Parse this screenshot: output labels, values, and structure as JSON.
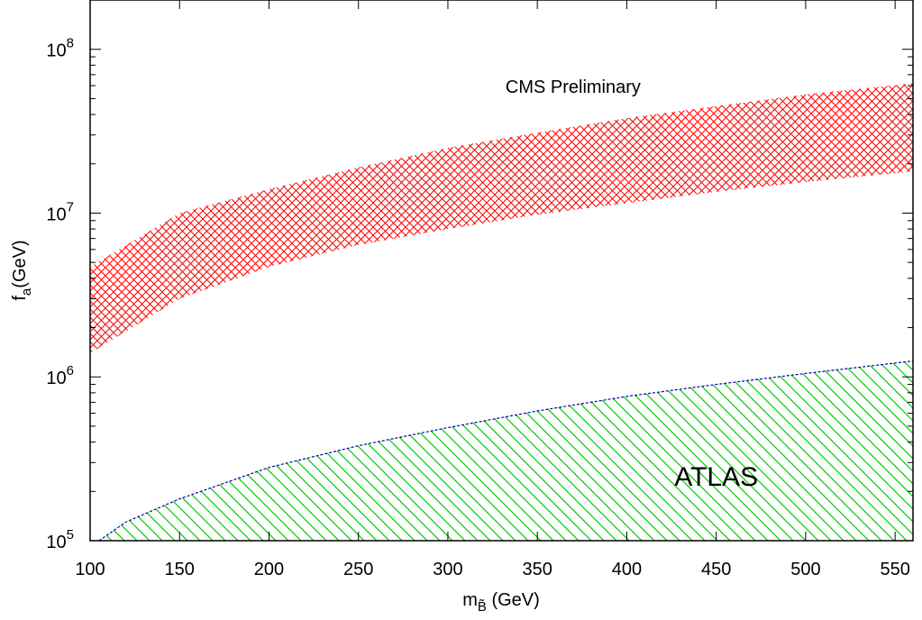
{
  "chart_data": {
    "type": "area",
    "title": "",
    "xlabel": {
      "base": "m",
      "sub": "B̃",
      "suffix": " (GeV)"
    },
    "ylabel": {
      "base": "f",
      "sub": "a",
      "suffix": "(GeV)"
    },
    "xlim": [
      100,
      560
    ],
    "ylim": [
      100000,
      200000000
    ],
    "log_y": true,
    "grid": false,
    "x_ticks": [
      100,
      150,
      200,
      250,
      300,
      350,
      400,
      450,
      500,
      550
    ],
    "x_tick_labels": [
      "100",
      "150",
      "200",
      "250",
      "300",
      "350",
      "400",
      "450",
      "500",
      "550"
    ],
    "y_ticks": [
      {
        "value": 100000,
        "base": "10",
        "exp": "5"
      },
      {
        "value": 1000000,
        "base": "10",
        "exp": "6"
      },
      {
        "value": 10000000,
        "base": "10",
        "exp": "7"
      },
      {
        "value": 100000000,
        "base": "10",
        "exp": "8"
      }
    ],
    "series": [
      {
        "fill_pattern": "crosshatch",
        "color": "#ff0000",
        "x": [
          100,
          150,
          200,
          250,
          300,
          350,
          400,
          450,
          500,
          560
        ],
        "y_lower": [
          1400000,
          3000000,
          4700000,
          6400000,
          8000000,
          9800000,
          11500000,
          13500000,
          15500000,
          18000000
        ],
        "y_upper": [
          4700000,
          10000000,
          14000000,
          19000000,
          25000000,
          31000000,
          38000000,
          45000000,
          53000000,
          62000000
        ]
      },
      {
        "fill_pattern": "diagonal",
        "color": "#00cc00",
        "edge_color": "#0000aa",
        "x": [
          105,
          120,
          150,
          200,
          250,
          300,
          350,
          400,
          450,
          500,
          560
        ],
        "y_lower": [
          100000,
          100000,
          100000,
          100000,
          100000,
          100000,
          100000,
          100000,
          100000,
          100000,
          100000
        ],
        "y_upper": [
          100000,
          130000,
          180000,
          280000,
          380000,
          490000,
          620000,
          760000,
          900000,
          1050000,
          1250000
        ]
      }
    ],
    "annotations": [
      {
        "text": "CMS Preliminary",
        "x": 370,
        "y": 60000000,
        "size": "small"
      },
      {
        "text": "ATLAS",
        "x": 450,
        "y": 240000,
        "size": "large"
      }
    ]
  }
}
